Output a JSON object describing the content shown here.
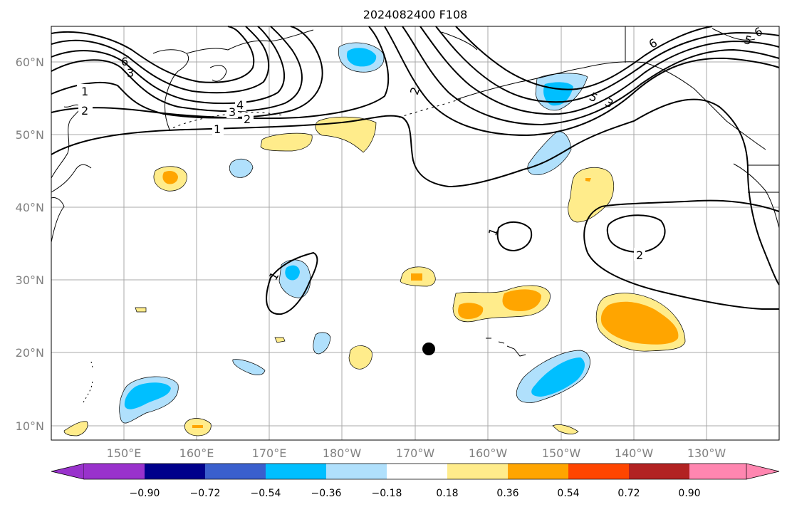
{
  "title": "2024082400 F108",
  "map": {
    "lat_labels": [
      "60°N",
      "50°N",
      "40°N",
      "30°N",
      "20°N",
      "10°N"
    ],
    "lon_labels": [
      "150°E",
      "160°E",
      "170°E",
      "180°W",
      "170°W",
      "160°W",
      "150°W",
      "140°W",
      "130°W"
    ],
    "contour_labels": [
      "1",
      "2",
      "6",
      "3",
      "4",
      "3",
      "2",
      "1",
      "2",
      "5",
      "3",
      "6",
      "5",
      "6",
      "1",
      "2",
      "1"
    ]
  },
  "colorbar": {
    "ticks": [
      "−0.90",
      "−0.72",
      "−0.54",
      "−0.36",
      "−0.18",
      "0.18",
      "0.36",
      "0.54",
      "0.72",
      "0.90"
    ],
    "colors": {
      "lt_-0.90": "#9932cc",
      "-0.90_-0.72": "#00008b",
      "-0.72_-0.54": "#3a5fcd",
      "-0.54_-0.36": "#00bfff",
      "-0.36_-0.18": "#b0e0fc",
      "-0.18_0.18": "#ffffff",
      "0.18_0.36": "#ffec8b",
      "0.36_0.54": "#ffa500",
      "0.54_0.72": "#ff4500",
      "0.72_0.90": "#b22222",
      "gt_0.90": "#ff86b0"
    }
  }
}
